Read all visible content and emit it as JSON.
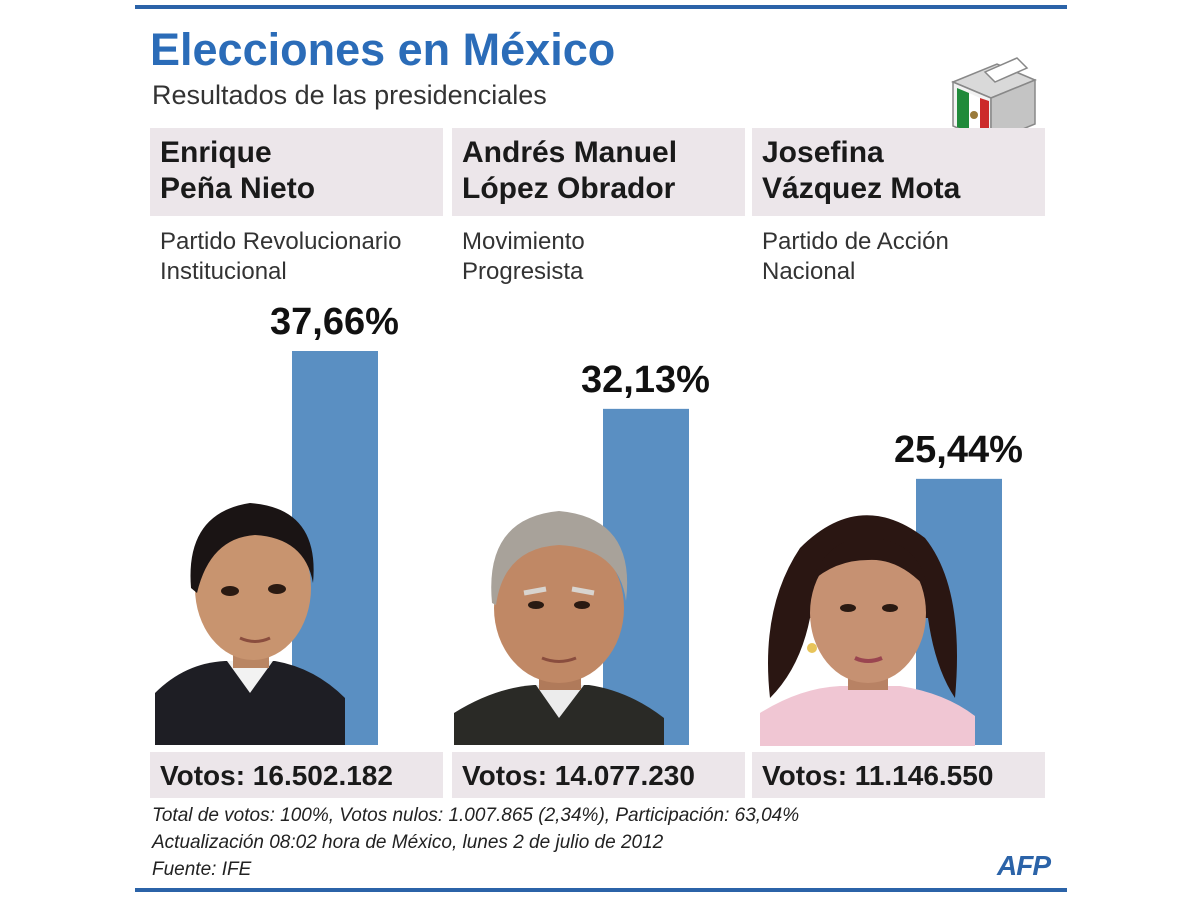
{
  "header": {
    "title": "Elecciones en México",
    "subtitle": "Resultados de las presidenciales"
  },
  "chart_data": {
    "type": "bar",
    "title": "Elecciones en México",
    "subtitle": "Resultados de las presidenciales",
    "categories": [
      "Enrique Peña Nieto",
      "Andrés Manuel López Obrador",
      "Josefina Vázquez Mota"
    ],
    "values": [
      37.66,
      32.13,
      25.44
    ],
    "value_labels": [
      "37,66%",
      "32,13%",
      "25,44%"
    ],
    "ylim": [
      0,
      40
    ],
    "grid": false,
    "bar_color": "#5a8fc2"
  },
  "candidates": [
    {
      "name_line1": "Enrique",
      "name_line2": "Peña Nieto",
      "party_line1": "Partido Revolucionario",
      "party_line2": "Institucional",
      "pct_label": "37,66%",
      "votes": "Votos: 16.502.182"
    },
    {
      "name_line1": "Andrés Manuel",
      "name_line2": "López Obrador",
      "party_line1": "Movimiento",
      "party_line2": "Progresista",
      "pct_label": "32,13%",
      "votes": "Votos: 14.077.230"
    },
    {
      "name_line1": "Josefina",
      "name_line2": "Vázquez Mota",
      "party_line1": "Partido de Acción",
      "party_line2": "Nacional",
      "pct_label": "25,44%",
      "votes": "Votos: 11.146.550"
    }
  ],
  "footer": {
    "line1": "Total de votos: 100%, Votos nulos: 1.007.865 (2,34%), Participación: 63,04%",
    "line2": "Actualización 08:02 hora de México, lunes 2 de julio de 2012",
    "line3": "Fuente: IFE",
    "logo": "AFP"
  },
  "colors": {
    "accent": "#2b6cb8",
    "rule": "#2b63a8",
    "bar": "#5a8fc2",
    "panel": "#ece6ea"
  }
}
